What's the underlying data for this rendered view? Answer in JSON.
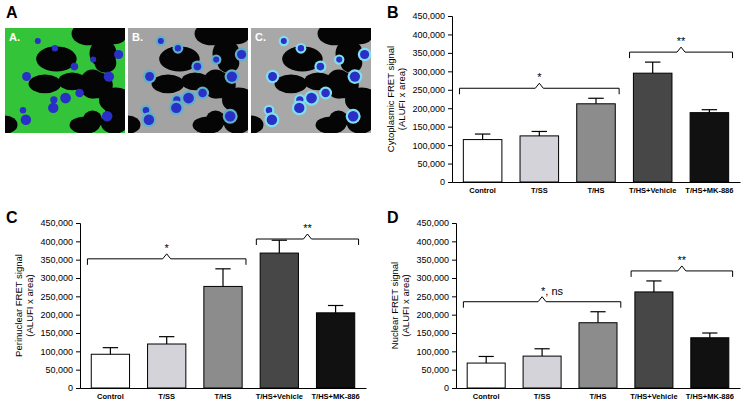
{
  "image_panel": {
    "panel_label": "A",
    "images": [
      "A.",
      "B.",
      "C."
    ]
  },
  "chart_data": [
    {
      "type": "bar",
      "panel_label": "B",
      "y_label": [
        "Cytoplasmic FRET signal",
        "(ALUFI x area)"
      ],
      "categories": [
        "Control",
        "T/SS",
        "T/HS",
        "T/HS+Vehicle",
        "T/HS+MK-886"
      ],
      "values": [
        115000,
        125000,
        212000,
        295000,
        188000
      ],
      "errors": [
        15000,
        12000,
        15000,
        30000,
        8000
      ],
      "colors": [
        "#ffffff",
        "#d3d3d9",
        "#8c8c8c",
        "#474747",
        "#111111"
      ],
      "ylim": [
        0,
        450000
      ],
      "yticks": [
        0,
        {
          "value": 50000,
          "label": "50,000"
        },
        {
          "value": 100000,
          "label": "100,000"
        },
        {
          "value": 150000,
          "label": "150,000"
        },
        {
          "value": 200000,
          "label": "200,000"
        },
        {
          "value": 250000,
          "label": "250,000"
        },
        {
          "value": 300000,
          "label": "300,000"
        },
        {
          "value": 350000,
          "label": "350,000"
        },
        {
          "value": 400000,
          "label": "400,000"
        },
        {
          "value": 450000,
          "label": "450,000"
        }
      ],
      "annotations": [
        {
          "text": "*",
          "from": "Control",
          "to": "T/HS"
        },
        {
          "text": "**",
          "from": "T/HS+Vehicle",
          "to": "T/HS+MK-886"
        }
      ]
    },
    {
      "type": "bar",
      "panel_label": "C",
      "y_label": [
        "Perinuclear FRET signal",
        "(ALUFI x area)"
      ],
      "categories": [
        "Control",
        "T/SS",
        "T/HS",
        "T/HS+Vehicle",
        "T/HS+MK-886"
      ],
      "values": [
        92000,
        120000,
        277000,
        368000,
        205000
      ],
      "errors": [
        18000,
        20000,
        48000,
        35000,
        20000
      ],
      "colors": [
        "#ffffff",
        "#d3d3d9",
        "#8c8c8c",
        "#474747",
        "#111111"
      ],
      "ylim": [
        0,
        450000
      ],
      "yticks": [
        0,
        {
          "value": 50000,
          "label": "50,000"
        },
        {
          "value": 100000,
          "label": "100,000"
        },
        {
          "value": 150000,
          "label": "150,000"
        },
        {
          "value": 200000,
          "label": "200,000"
        },
        {
          "value": 250000,
          "label": "250,000"
        },
        {
          "value": 300000,
          "label": "300,000"
        },
        {
          "value": 350000,
          "label": "350,000"
        },
        {
          "value": 400000,
          "label": "400,000"
        },
        {
          "value": 450000,
          "label": "450,000"
        }
      ],
      "annotations": [
        {
          "text": "*",
          "from": "Control",
          "to": "T/HS"
        },
        {
          "text": "**",
          "from": "T/HS+Vehicle",
          "to": "T/HS+MK-886"
        }
      ]
    },
    {
      "type": "bar",
      "panel_label": "D",
      "y_label": [
        "Nuclear FRET signal",
        "(ALUFI x area)"
      ],
      "categories": [
        "Control",
        "T/SS",
        "T/HS",
        "T/HS+Vehicle",
        "T/HS+MK-886"
      ],
      "values": [
        68000,
        87000,
        178000,
        262000,
        137000
      ],
      "errors": [
        18000,
        20000,
        30000,
        30000,
        13000
      ],
      "colors": [
        "#ffffff",
        "#d3d3d9",
        "#8c8c8c",
        "#474747",
        "#111111"
      ],
      "ylim": [
        0,
        450000
      ],
      "yticks": [
        0,
        {
          "value": 50000,
          "label": "50,000"
        },
        {
          "value": 100000,
          "label": "100,000"
        },
        {
          "value": 150000,
          "label": "150,000"
        },
        {
          "value": 200000,
          "label": "200,000"
        },
        {
          "value": 250000,
          "label": "250,000"
        },
        {
          "value": 300000,
          "label": "300,000"
        },
        {
          "value": 350000,
          "label": "350,000"
        },
        {
          "value": 400000,
          "label": "400,000"
        },
        {
          "value": 450000,
          "label": "450,000"
        }
      ],
      "annotations": [
        {
          "text": "*, ns",
          "from": "Control",
          "to": "T/HS"
        },
        {
          "text": "**",
          "from": "T/HS+Vehicle",
          "to": "T/HS+MK-886"
        }
      ]
    }
  ]
}
